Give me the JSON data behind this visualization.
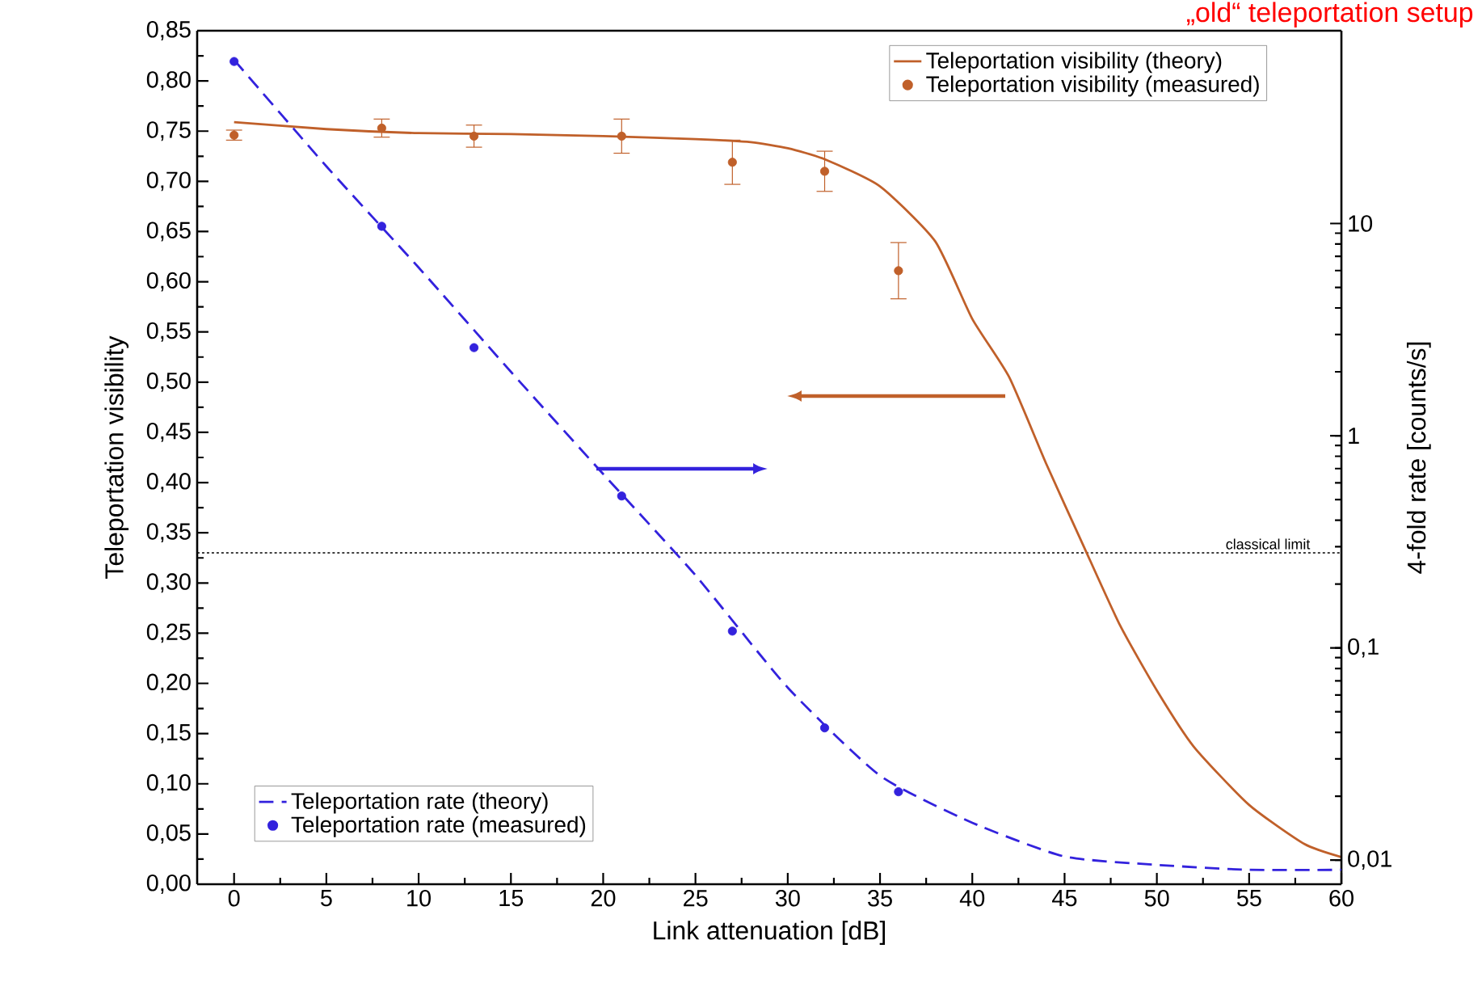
{
  "chart_data": {
    "type": "line",
    "title": "„old“ teleportation setup",
    "xlabel": "Link attenuation [dB]",
    "ylabel": "Teleportation visibility",
    "y2label": "4-fold rate [counts/s]",
    "xlim": [
      -2,
      60
    ],
    "xticks": [
      0,
      5,
      10,
      15,
      20,
      25,
      30,
      35,
      40,
      45,
      50,
      55,
      60
    ],
    "ylim": [
      0,
      0.85
    ],
    "yticks": [
      {
        "value": 0,
        "label": "0,00"
      },
      {
        "value": 0.05,
        "label": "0,05"
      },
      {
        "value": 0.1,
        "label": "0,10"
      },
      {
        "value": 0.15,
        "label": "0,15"
      },
      {
        "value": 0.2,
        "label": "0,20"
      },
      {
        "value": 0.25,
        "label": "0,25"
      },
      {
        "value": 0.3,
        "label": "0,30"
      },
      {
        "value": 0.35,
        "label": "0,35"
      },
      {
        "value": 0.4,
        "label": "0,40"
      },
      {
        "value": 0.45,
        "label": "0,45"
      },
      {
        "value": 0.5,
        "label": "0,50"
      },
      {
        "value": 0.55,
        "label": "0,55"
      },
      {
        "value": 0.6,
        "label": "0,60"
      },
      {
        "value": 0.65,
        "label": "0,65"
      },
      {
        "value": 0.7,
        "label": "0,70"
      },
      {
        "value": 0.75,
        "label": "0,75"
      },
      {
        "value": 0.8,
        "label": "0,80"
      },
      {
        "value": 0.85,
        "label": "0,85"
      }
    ],
    "y2lim": [
      0.0077,
      81
    ],
    "y2ticks": [
      {
        "value": 0.01,
        "label": "0,01"
      },
      {
        "value": 0.1,
        "label": "0,1"
      },
      1,
      10
    ],
    "log": "y2",
    "legend": "top right",
    "series": [
      {
        "name": "Teleportation visibility (theory)",
        "line_style": "solid",
        "marker": "none",
        "color": "#c0602a",
        "x": [
          0,
          5,
          10,
          15,
          20,
          25,
          28,
          30,
          32,
          35,
          38,
          40,
          42,
          44,
          46,
          48,
          50,
          52,
          55,
          58,
          60
        ],
        "values": [
          0.759,
          0.752,
          0.748,
          0.747,
          0.745,
          0.742,
          0.739,
          0.733,
          0.722,
          0.695,
          0.64,
          0.563,
          0.505,
          0.419,
          0.338,
          0.258,
          0.193,
          0.137,
          0.079,
          0.04,
          0.027
        ]
      },
      {
        "name": "Teleportation visibility (measured)",
        "type": "scatter",
        "marker": "circle",
        "color": "#c0602a",
        "x": [
          0,
          8,
          13,
          21,
          27,
          32,
          36
        ],
        "values": [
          0.746,
          0.753,
          0.745,
          0.745,
          0.719,
          0.71,
          0.611
        ],
        "errors": [
          0.005,
          0.009,
          0.011,
          0.017,
          0.022,
          0.02,
          0.028
        ]
      },
      {
        "name": "Teleportation rate (theory)",
        "axis": "y2",
        "line_style": "dashed",
        "marker": "none",
        "color": "#3322dd",
        "x": [
          0,
          5,
          10,
          15,
          20,
          25,
          30,
          35,
          40,
          45,
          50,
          55,
          60
        ],
        "values": [
          59,
          18.6,
          6.2,
          2.0,
          0.66,
          0.22,
          0.065,
          0.025,
          0.015,
          0.0104,
          0.0095,
          0.009,
          0.009
        ]
      },
      {
        "name": "Teleportation rate (measured)",
        "type": "scatter",
        "axis": "y2",
        "marker": "circle",
        "color": "#3322dd",
        "x": [
          0,
          8,
          13,
          21,
          27,
          32,
          36
        ],
        "values": [
          58,
          9.7,
          2.6,
          0.52,
          0.12,
          0.042,
          0.021
        ]
      }
    ],
    "ref_lines": [
      {
        "axis": "y",
        "value": 0.33,
        "label": "classical limit",
        "color": "#000000",
        "line_style": "dotted"
      }
    ]
  }
}
